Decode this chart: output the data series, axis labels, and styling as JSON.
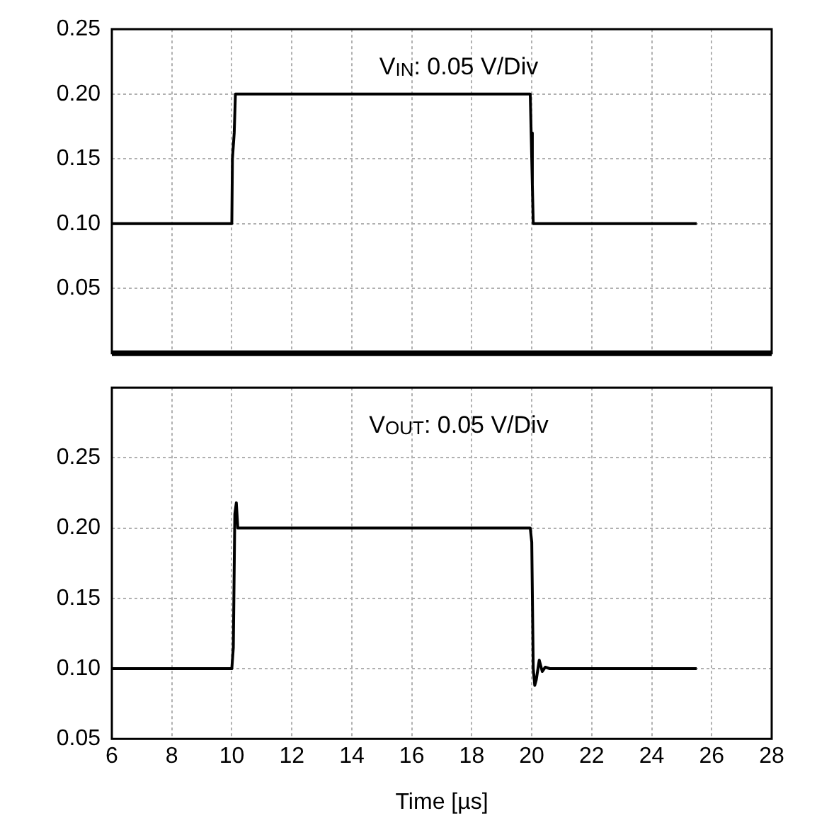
{
  "chart_data": [
    {
      "type": "line",
      "annotations": [
        "V$_{IN}$: 0.05 V/Div"
      ],
      "xlim": [
        6,
        28
      ],
      "xticks": [
        6,
        8,
        10,
        12,
        14,
        16,
        18,
        20,
        22,
        24,
        26,
        28
      ],
      "ylim": [
        0,
        0.25
      ],
      "yticks": [
        {
          "value": 0.05,
          "label": "0.05"
        },
        {
          "value": 0.1,
          "label": "0.10"
        },
        {
          "value": 0.15,
          "label": "0.15"
        },
        {
          "value": 0.2,
          "label": "0.20"
        },
        {
          "value": 0.25,
          "label": "0.25"
        }
      ],
      "tick_labels": "y",
      "grid": true,
      "legend": false,
      "marker": "none",
      "line_style": "solid",
      "series": [
        {
          "color": "#000000",
          "x": [
            6,
            10,
            10.02,
            10.08,
            10.12,
            19.95,
            19.98,
            20.02,
            20.05,
            25.5
          ],
          "values": [
            0.1,
            0.1,
            0.15,
            0.17,
            0.2,
            0.2,
            0.17,
            0.13,
            0.1,
            0.1
          ]
        }
      ]
    },
    {
      "type": "line",
      "annotations": [
        "V$_{OUT}$: 0.05 V/Div"
      ],
      "xlabel": "Time [µs]",
      "xlim": [
        6,
        28
      ],
      "xticks": [
        6,
        8,
        10,
        12,
        14,
        16,
        18,
        20,
        22,
        24,
        26,
        28
      ],
      "ylim": [
        0.05,
        0.3
      ],
      "yticks": [
        {
          "value": 0.05,
          "label": "0.05"
        },
        {
          "value": 0.1,
          "label": "0.10"
        },
        {
          "value": 0.15,
          "label": "0.15"
        },
        {
          "value": 0.2,
          "label": "0.20"
        },
        {
          "value": 0.25,
          "label": "0.25"
        }
      ],
      "grid": true,
      "legend": false,
      "marker": "none",
      "line_style": "solid",
      "series": [
        {
          "color": "#000000",
          "x": [
            6,
            10,
            10.05,
            10.1,
            10.15,
            10.2,
            10.3,
            10.5,
            19.95,
            20.0,
            20.05,
            20.1,
            20.15,
            20.25,
            20.35,
            20.45,
            20.6,
            25.5
          ],
          "values": [
            0.1,
            0.1,
            0.115,
            0.21,
            0.218,
            0.2,
            0.2,
            0.2,
            0.2,
            0.19,
            0.1,
            0.088,
            0.092,
            0.106,
            0.098,
            0.101,
            0.1,
            0.1
          ]
        }
      ]
    }
  ]
}
